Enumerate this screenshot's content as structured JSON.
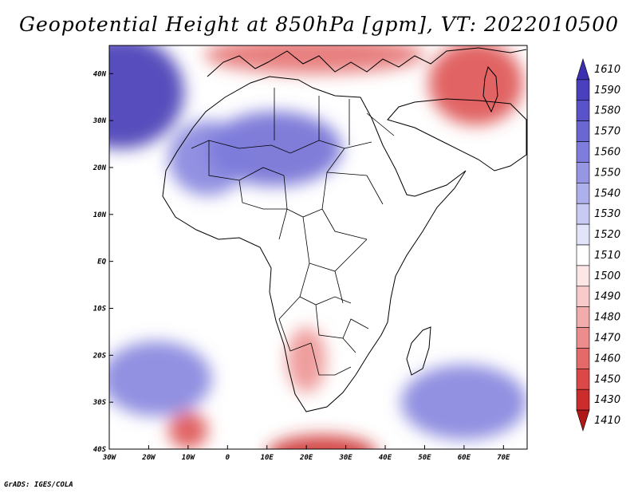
{
  "title": "Geopotential Height at 850hPa [gpm], VT: 2022010500",
  "footer": "GrADS: IGES/COLA",
  "map": {
    "projection": "latlon",
    "lon_range": [
      -30,
      76
    ],
    "lat_range": [
      -40,
      46
    ],
    "lon_ticks": [
      {
        "v": -30,
        "label": "30W"
      },
      {
        "v": -20,
        "label": "20W"
      },
      {
        "v": -10,
        "label": "10W"
      },
      {
        "v": 0,
        "label": "0"
      },
      {
        "v": 10,
        "label": "10E"
      },
      {
        "v": 20,
        "label": "20E"
      },
      {
        "v": 30,
        "label": "30E"
      },
      {
        "v": 40,
        "label": "40E"
      },
      {
        "v": 50,
        "label": "50E"
      },
      {
        "v": 60,
        "label": "60E"
      },
      {
        "v": 70,
        "label": "70E"
      }
    ],
    "lat_ticks": [
      {
        "v": 40,
        "label": "40N"
      },
      {
        "v": 30,
        "label": "30N"
      },
      {
        "v": 20,
        "label": "20N"
      },
      {
        "v": 10,
        "label": "10N"
      },
      {
        "v": 0,
        "label": "EQ"
      },
      {
        "v": -10,
        "label": "10S"
      },
      {
        "v": -20,
        "label": "20S"
      },
      {
        "v": -30,
        "label": "30S"
      },
      {
        "v": -40,
        "label": "40S"
      }
    ],
    "background_level": 1510,
    "features": [
      {
        "name": "azores-high",
        "lon": -27,
        "lat": 36,
        "rx": 16,
        "ry": 12,
        "level": 1600
      },
      {
        "name": "sahara-high",
        "lon": 12,
        "lat": 24,
        "rx": 17,
        "ry": 8,
        "level": 1570
      },
      {
        "name": "west-sahara-high",
        "lon": -5,
        "lat": 22,
        "rx": 10,
        "ry": 8,
        "level": 1560
      },
      {
        "name": "med-low",
        "lon": 22,
        "lat": 44,
        "rx": 28,
        "ry": 4,
        "level": 1460
      },
      {
        "name": "mideast-low",
        "lon": 63,
        "lat": 38,
        "rx": 12,
        "ry": 9,
        "level": 1440
      },
      {
        "name": "kalahari-low",
        "lon": 20,
        "lat": -21,
        "rx": 5,
        "ry": 7,
        "level": 1470
      },
      {
        "name": "southwest-atlantic-low",
        "lon": -10,
        "lat": -36,
        "rx": 5,
        "ry": 4,
        "level": 1450
      },
      {
        "name": "south-africa-low",
        "lon": 24,
        "lat": -41,
        "rx": 14,
        "ry": 4,
        "level": 1430
      },
      {
        "name": "south-atlantic-high",
        "lon": -18,
        "lat": -25,
        "rx": 14,
        "ry": 8,
        "level": 1560
      },
      {
        "name": "indian-ocean-high",
        "lon": 60,
        "lat": -30,
        "rx": 16,
        "ry": 8,
        "level": 1560
      }
    ]
  },
  "colorbar": {
    "levels": [
      "1610",
      "1590",
      "1580",
      "1570",
      "1560",
      "1550",
      "1540",
      "1530",
      "1520",
      "1510",
      "1500",
      "1490",
      "1480",
      "1470",
      "1460",
      "1450",
      "1430",
      "1410"
    ],
    "colors": [
      "#3a30b0",
      "#4a40be",
      "#5a52c8",
      "#6a66d2",
      "#7e7cdc",
      "#9696e4",
      "#aeb0ec",
      "#c8caf4",
      "#e2e4fa",
      "#ffffff",
      "#fce6e6",
      "#f8caca",
      "#f2acac",
      "#ec8c8c",
      "#e46a6a",
      "#dc4848",
      "#cc2c2c",
      "#b01818"
    ]
  }
}
